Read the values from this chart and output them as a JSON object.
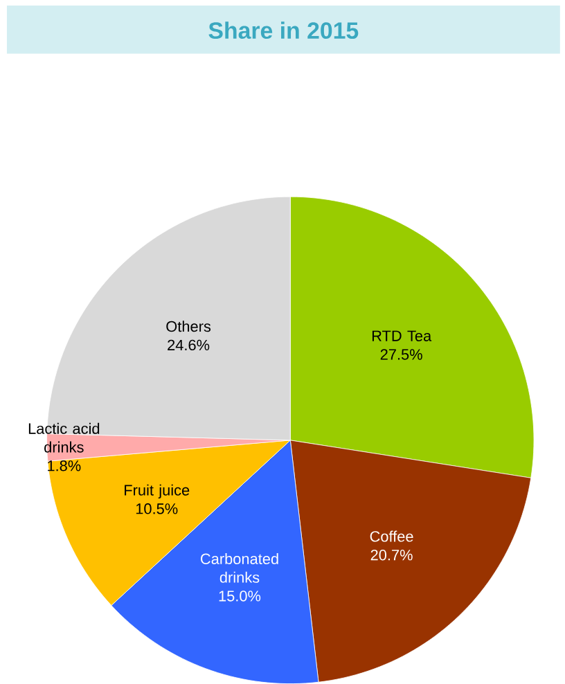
{
  "chart_data": {
    "type": "pie",
    "title": "Share in 2015",
    "categories": [
      "RTD Tea",
      "Coffee",
      "Carbonated drinks",
      "Fruit juice",
      "Lactic acid drinks",
      "Others"
    ],
    "values": [
      27.5,
      20.7,
      15.0,
      10.5,
      1.8,
      24.6
    ],
    "value_labels": [
      "27.5%",
      "20.7%",
      "15.0%",
      "10.5%",
      "1.8%",
      "24.6%"
    ],
    "colors": [
      "#99cc00",
      "#993300",
      "#3366ff",
      "#ffc000",
      "#ffaaaa",
      "#d9d9d9"
    ]
  }
}
